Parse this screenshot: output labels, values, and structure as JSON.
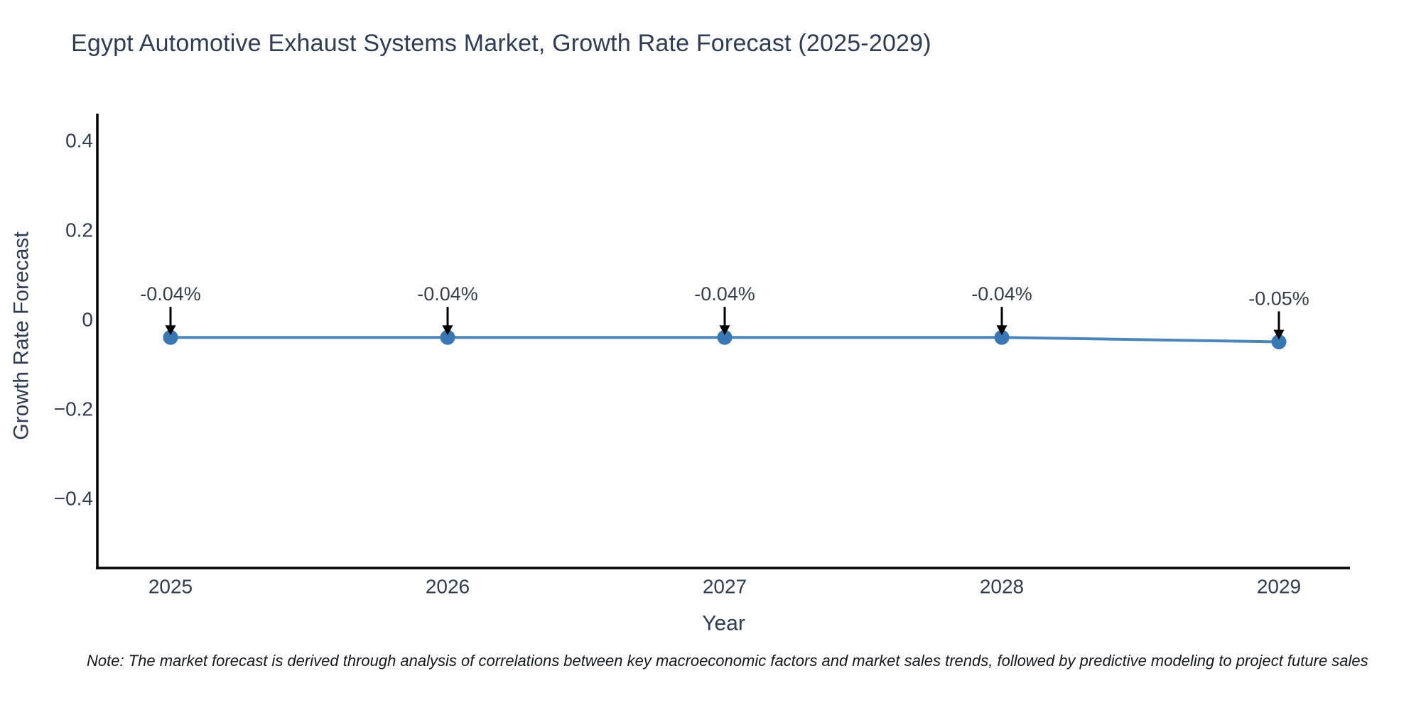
{
  "title": "Egypt Automotive Exhaust Systems Market, Growth Rate Forecast (2025-2029)",
  "note": "Note: The market forecast is derived through analysis of correlations between key macroeconomic factors and market sales trends, followed by predictive modeling to project future sales",
  "chart_data": {
    "type": "line",
    "title": "Egypt Automotive Exhaust Systems Market, Growth Rate Forecast (2025-2029)",
    "xlabel": "Year",
    "ylabel": "Growth Rate Forecast",
    "categories": [
      "2025",
      "2026",
      "2027",
      "2028",
      "2029"
    ],
    "x": [
      2025,
      2026,
      2027,
      2028,
      2029
    ],
    "values": [
      -0.04,
      -0.04,
      -0.04,
      -0.04,
      -0.05
    ],
    "point_labels": [
      "-0.04%",
      "-0.04%",
      "-0.04%",
      "-0.04%",
      "-0.05%"
    ],
    "yticks": [
      0.4,
      0.2,
      0,
      -0.2,
      -0.4
    ],
    "ytick_labels": [
      "0.4",
      "0.2",
      "0",
      "−0.2",
      "−0.4"
    ],
    "xtick_labels": [
      "2025",
      "2026",
      "2027",
      "2028",
      "2029"
    ],
    "ylim": [
      -0.56,
      0.46
    ],
    "xlim": [
      2024.74,
      2029.28
    ],
    "grid": false,
    "legend": "none",
    "colors": {
      "line": "#4d86b8",
      "marker": "#3878b4",
      "axis": "#000000",
      "tick_label": "#2e3d54",
      "axis_label": "#2e3d54",
      "title": "#2e3d54",
      "annotation": "#333f4e",
      "arrow": "#000000",
      "background": "#ffffff"
    }
  }
}
